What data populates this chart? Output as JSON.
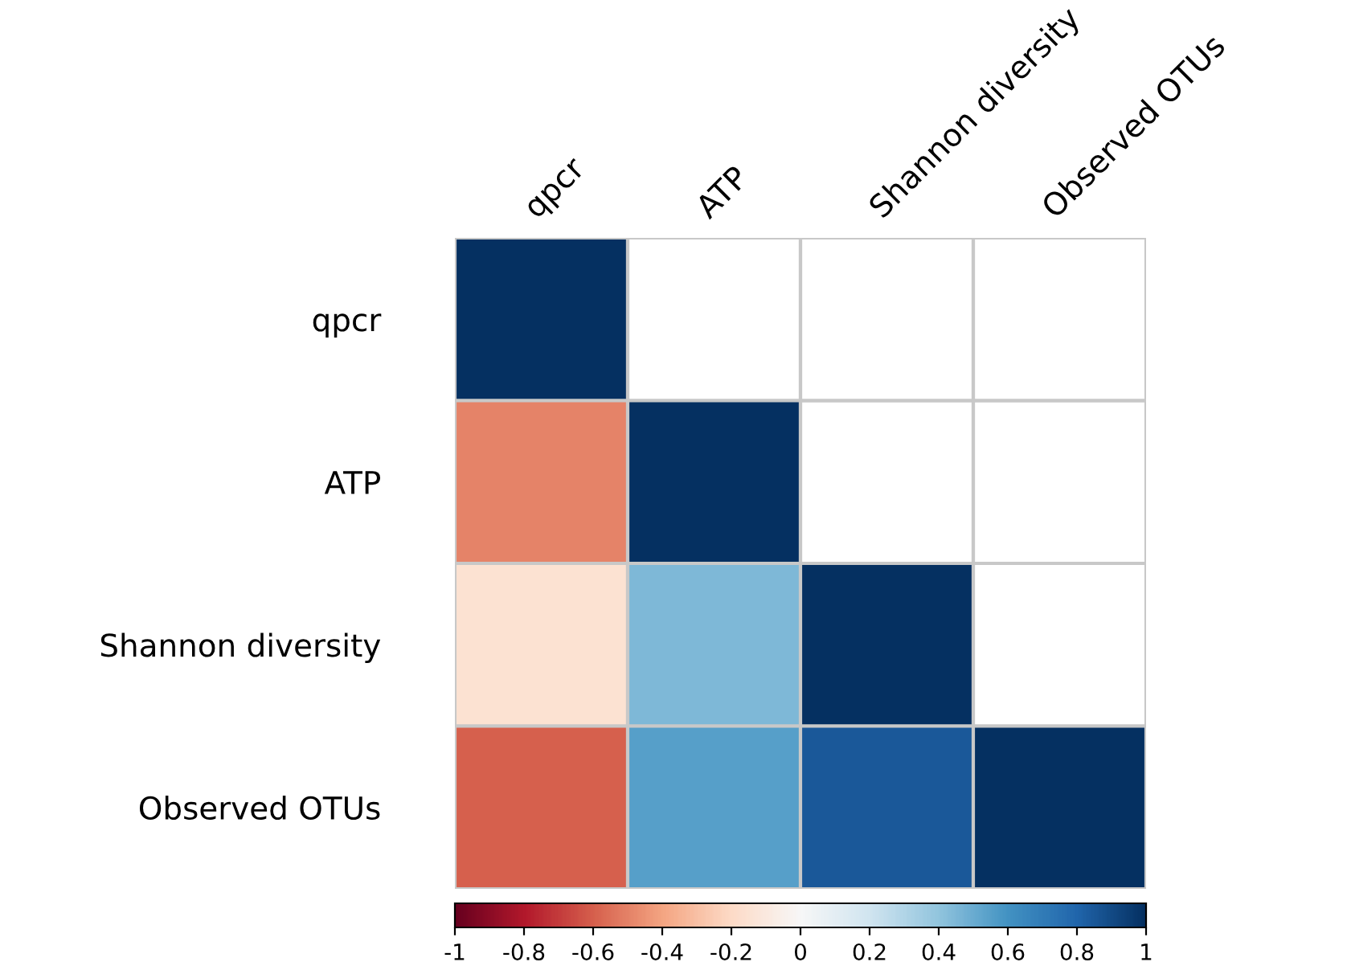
{
  "chart_data": {
    "type": "heatmap",
    "categories": [
      "qpcr",
      "ATP",
      "Shannon diversity",
      "Observed OTUs"
    ],
    "y_categories": [
      "qpcr",
      "ATP",
      "Shannon diversity",
      "Observed OTUs"
    ],
    "cells": [
      [
        1,
        null,
        null,
        null
      ],
      [
        -0.5,
        1,
        null,
        null
      ],
      [
        -0.15,
        0.45,
        1,
        null
      ],
      [
        -0.6,
        0.55,
        0.85,
        1
      ]
    ],
    "clim": [
      -1,
      1
    ],
    "cticks": [
      -1,
      -0.8,
      -0.6,
      -0.4,
      -0.2,
      0,
      0.2,
      0.4,
      0.6,
      0.8,
      1
    ]
  }
}
